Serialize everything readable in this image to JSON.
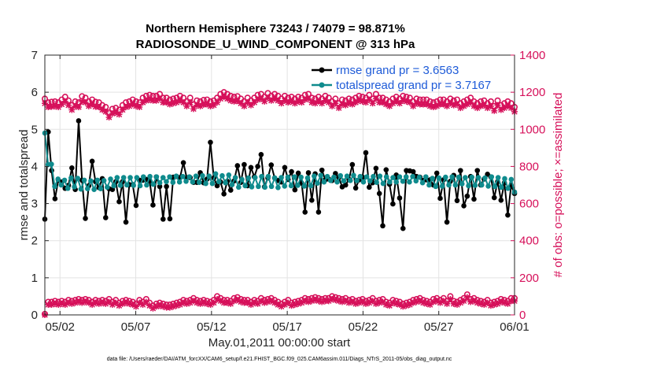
{
  "chart_data": {
    "type": "line",
    "title_line1": "Northern Hemisphere 73243 / 74079 = 98.871%",
    "title_line2": "RADIOSONDE_U_WIND_COMPONENT @ 313 hPa",
    "xlabel": "May.01,2011 00:00:00 start",
    "ylabel_left": "rmse and totalspread",
    "ylabel_right": "# of obs: o=possible; ×=assimilated",
    "footnote": "data file: /Users/raeder/DAI/ATM_forcXX/CAM6_setup/f.e21.FHIST_BGC.f09_025.CAM6assim.011/Diags_NTrS_2011-05/obs_diag_output.nc",
    "x_range_days": [
      0,
      31
    ],
    "ylim_left": [
      0,
      7
    ],
    "ylim_right": [
      0,
      1400
    ],
    "yticks_left": [
      "0",
      "1",
      "2",
      "3",
      "4",
      "5",
      "6",
      "7"
    ],
    "yticks_right": [
      "0",
      "200",
      "400",
      "600",
      "800",
      "1000",
      "1200",
      "1400"
    ],
    "xticks": [
      {
        "day": 1,
        "label": "05/02"
      },
      {
        "day": 6,
        "label": "05/07"
      },
      {
        "day": 11,
        "label": "05/12"
      },
      {
        "day": 16,
        "label": "05/17"
      },
      {
        "day": 21,
        "label": "05/22"
      },
      {
        "day": 26,
        "label": "05/27"
      },
      {
        "day": 31,
        "label": "06/01"
      }
    ],
    "series": [
      {
        "name": "rmse",
        "legend": "rmse grand pr = 3.6563",
        "color": "#000000",
        "values": [
          2.58,
          4.93,
          3.89,
          3.13,
          3.63,
          3.58,
          3.41,
          3.49,
          3.96,
          3.38,
          5.23,
          3.63,
          2.6,
          3.48,
          4.14,
          3.59,
          3.43,
          3.67,
          2.62,
          3.4,
          3.38,
          3.59,
          3.05,
          3.59,
          2.5,
          3.51,
          3.51,
          2.95,
          3.63,
          3.63,
          3.65,
          3.61,
          2.96,
          3.72,
          3.46,
          2.58,
          3.46,
          2.59,
          3.71,
          3.73,
          3.7,
          4.1,
          3.69,
          3.7,
          3.57,
          3.57,
          3.83,
          3.56,
          3.66,
          4.65,
          3.69,
          3.48,
          3.58,
          3.26,
          3.6,
          3.36,
          3.61,
          4.02,
          3.57,
          4.05,
          3.48,
          3.97,
          3.72,
          4.0,
          4.32,
          3.45,
          3.69,
          4.04,
          3.69,
          3.62,
          3.58,
          3.97,
          3.65,
          3.86,
          3.37,
          3.82,
          3.55,
          2.77,
          3.83,
          3.09,
          3.8,
          2.77,
          3.9,
          3.64,
          3.66,
          3.62,
          3.81,
          3.7,
          3.45,
          3.5,
          3.65,
          4.05,
          3.42,
          3.64,
          3.71,
          4.37,
          3.44,
          3.56,
          3.95,
          3.27,
          2.4,
          3.91,
          3.52,
          2.99,
          3.77,
          3.15,
          2.33,
          3.89,
          3.88,
          3.86,
          3.73,
          3.71,
          3.62,
          3.64,
          3.64,
          3.5,
          3.82,
          3.14,
          3.64,
          2.5,
          3.6,
          3.76,
          3.08,
          3.89,
          2.94,
          3.2,
          3.73,
          3.12,
          3.89,
          3.5,
          3.66,
          3.79,
          3.72,
          3.16,
          3.59,
          3.09,
          3.56,
          2.69,
          3.49,
          3.27
        ]
      },
      {
        "name": "totalspread",
        "legend": "totalspread grand pr = 3.7167",
        "color": "#0f8b8d",
        "values": [
          4.9,
          4.05,
          4.06,
          3.46,
          3.66,
          3.5,
          3.63,
          3.41,
          3.69,
          3.45,
          3.68,
          3.39,
          3.63,
          3.4,
          3.61,
          3.38,
          3.63,
          3.4,
          3.62,
          3.44,
          3.66,
          3.48,
          3.7,
          3.49,
          3.7,
          3.5,
          3.7,
          3.49,
          3.7,
          3.48,
          3.72,
          3.5,
          3.73,
          3.52,
          3.72,
          3.56,
          3.7,
          3.59,
          3.72,
          3.57,
          3.74,
          3.58,
          3.73,
          3.6,
          3.72,
          3.58,
          3.74,
          3.57,
          3.75,
          3.54,
          3.74,
          3.54,
          3.8,
          3.59,
          3.75,
          3.56,
          3.77,
          3.51,
          3.7,
          3.44,
          3.65,
          3.48,
          3.69,
          3.45,
          3.7,
          3.46,
          3.73,
          3.44,
          3.73,
          3.46,
          3.69,
          3.43,
          3.7,
          3.47,
          3.71,
          3.48,
          3.72,
          3.49,
          3.71,
          3.47,
          3.69,
          3.48,
          3.74,
          3.55,
          3.76,
          3.58,
          3.73,
          3.62,
          3.71,
          3.58,
          3.75,
          3.61,
          3.74,
          3.62,
          3.76,
          3.62,
          3.73,
          3.58,
          3.72,
          3.61,
          3.73,
          3.57,
          3.74,
          3.54,
          3.72,
          3.58,
          3.7,
          3.58,
          3.72,
          3.6,
          3.72,
          3.58,
          3.73,
          3.61,
          3.71,
          3.56,
          3.72,
          3.5,
          3.68,
          3.46,
          3.69,
          3.47,
          3.71,
          3.5,
          3.72,
          3.5,
          3.71,
          3.53,
          3.7,
          3.48,
          3.71,
          3.49,
          3.7,
          3.5,
          3.69,
          3.47,
          3.72,
          3.46,
          3.7,
          3.44,
          3.67,
          3.41,
          3.65,
          3.31
        ]
      },
      {
        "name": "possible",
        "axis": "right",
        "marker": "o",
        "color": "#d6105a",
        "values": [
          1165,
          1145,
          1148,
          1150,
          1145,
          1160,
          1175,
          1155,
          1130,
          1150,
          1145,
          1178,
          1170,
          1150,
          1160,
          1148,
          1145,
          1130,
          1120,
          1090,
          1110,
          1115,
          1105,
          1130,
          1145,
          1150,
          1160,
          1150,
          1145,
          1170,
          1180,
          1185,
          1180,
          1180,
          1190,
          1170,
          1170,
          1160,
          1165,
          1170,
          1180,
          1170,
          1150,
          1170,
          1135,
          1155,
          1150,
          1158,
          1160,
          1150,
          1155,
          1170,
          1190,
          1200,
          1190,
          1180,
          1175,
          1178,
          1165,
          1150,
          1170,
          1155,
          1170,
          1185,
          1190,
          1175,
          1195,
          1180,
          1190,
          1180,
          1165,
          1180,
          1170,
          1175,
          1165,
          1175,
          1170,
          1185,
          1190,
          1170,
          1165,
          1175,
          1165,
          1180,
          1170,
          1150,
          1165,
          1140,
          1160,
          1155,
          1165,
          1160,
          1170,
          1180,
          1175,
          1170,
          1185,
          1165,
          1190,
          1170,
          1170,
          1160,
          1150,
          1165,
          1175,
          1165,
          1180,
          1175,
          1170,
          1150,
          1165,
          1160,
          1160,
          1160,
          1150,
          1145,
          1150,
          1160,
          1160,
          1150,
          1165,
          1155,
          1160,
          1140,
          1150,
          1160,
          1170,
          1150,
          1140,
          1150,
          1155,
          1140,
          1150,
          1125,
          1155,
          1130,
          1140,
          1150,
          1140,
          1120
        ]
      },
      {
        "name": "assimilated",
        "axis": "right",
        "marker": "x",
        "color": "#d6105a",
        "values": [
          1140,
          1120,
          1122,
          1125,
          1120,
          1135,
          1150,
          1130,
          1105,
          1125,
          1120,
          1150,
          1145,
          1125,
          1135,
          1122,
          1120,
          1105,
          1095,
          1065,
          1085,
          1090,
          1080,
          1105,
          1120,
          1125,
          1135,
          1125,
          1120,
          1145,
          1155,
          1160,
          1155,
          1155,
          1165,
          1145,
          1145,
          1135,
          1140,
          1145,
          1155,
          1145,
          1125,
          1145,
          1110,
          1130,
          1125,
          1133,
          1135,
          1125,
          1130,
          1145,
          1165,
          1175,
          1165,
          1155,
          1150,
          1153,
          1140,
          1125,
          1145,
          1130,
          1145,
          1160,
          1165,
          1150,
          1170,
          1155,
          1165,
          1155,
          1140,
          1155,
          1145,
          1150,
          1140,
          1150,
          1145,
          1160,
          1165,
          1145,
          1140,
          1150,
          1140,
          1155,
          1145,
          1125,
          1140,
          1115,
          1135,
          1130,
          1140,
          1135,
          1145,
          1155,
          1150,
          1145,
          1160,
          1140,
          1165,
          1145,
          1145,
          1135,
          1125,
          1140,
          1150,
          1140,
          1155,
          1150,
          1145,
          1125,
          1140,
          1135,
          1135,
          1135,
          1125,
          1120,
          1125,
          1135,
          1135,
          1125,
          1140,
          1130,
          1135,
          1115,
          1125,
          1135,
          1145,
          1125,
          1115,
          1125,
          1130,
          1115,
          1125,
          1100,
          1130,
          1105,
          1115,
          1125,
          1115,
          1095
        ]
      },
      {
        "name": "possible_low",
        "axis": "right",
        "marker": "o",
        "color": "#d6105a",
        "values": [
          5,
          70,
          70,
          75,
          70,
          75,
          70,
          80,
          75,
          80,
          85,
          80,
          85,
          80,
          70,
          80,
          75,
          80,
          75,
          85,
          70,
          80,
          65,
          75,
          80,
          75,
          70,
          60,
          80,
          70,
          85,
          65,
          50,
          60,
          65,
          60,
          55,
          55,
          60,
          65,
          70,
          80,
          75,
          80,
          90,
          80,
          75,
          80,
          75,
          70,
          80,
          100,
          90,
          80,
          80,
          75,
          90,
          95,
          85,
          80,
          80,
          70,
          80,
          75,
          90,
          80,
          85,
          90,
          80,
          70,
          60,
          70,
          80,
          65,
          70,
          75,
          80,
          90,
          85,
          90,
          95,
          90,
          85,
          90,
          90,
          100,
          95,
          90,
          85,
          90,
          80,
          85,
          75,
          80,
          85,
          75,
          80,
          90,
          75,
          80,
          85,
          70,
          65,
          80,
          75,
          70,
          60,
          65,
          70,
          80,
          85,
          90,
          80,
          75,
          70,
          85,
          90,
          80,
          90,
          75,
          100,
          75,
          70,
          80,
          90,
          110,
          85,
          90,
          80,
          75,
          70,
          80,
          65,
          70,
          75,
          85,
          80,
          75,
          90,
          90
        ]
      },
      {
        "name": "assimilated_low",
        "axis": "right",
        "marker": "x",
        "color": "#d6105a",
        "values": [
          0,
          55,
          55,
          60,
          55,
          60,
          55,
          65,
          60,
          65,
          70,
          65,
          70,
          65,
          55,
          65,
          60,
          65,
          60,
          70,
          55,
          65,
          50,
          60,
          65,
          60,
          55,
          45,
          65,
          55,
          70,
          50,
          35,
          45,
          50,
          45,
          40,
          40,
          45,
          50,
          55,
          65,
          60,
          65,
          75,
          65,
          60,
          65,
          60,
          55,
          65,
          85,
          75,
          65,
          65,
          60,
          75,
          80,
          70,
          65,
          65,
          55,
          65,
          60,
          75,
          65,
          70,
          75,
          65,
          55,
          45,
          55,
          65,
          50,
          55,
          60,
          65,
          75,
          70,
          75,
          80,
          75,
          70,
          75,
          75,
          85,
          80,
          75,
          70,
          75,
          65,
          70,
          60,
          65,
          70,
          60,
          65,
          75,
          60,
          65,
          70,
          55,
          50,
          65,
          60,
          55,
          45,
          50,
          55,
          65,
          70,
          75,
          65,
          60,
          55,
          70,
          75,
          65,
          75,
          60,
          85,
          60,
          55,
          65,
          75,
          95,
          70,
          75,
          65,
          60,
          55,
          65,
          50,
          55,
          60,
          70,
          65,
          60,
          75,
          75
        ]
      }
    ]
  }
}
